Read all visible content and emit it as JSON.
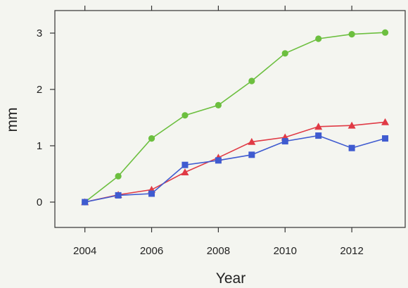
{
  "chart_data": {
    "type": "line",
    "title": "",
    "xlabel": "Year",
    "ylabel": "mm",
    "xlim": [
      2003.1,
      2013.6
    ],
    "ylim": [
      -0.45,
      3.4
    ],
    "x_ticks": [
      2004,
      2006,
      2008,
      2010,
      2012
    ],
    "x_tick_labels": [
      "2004",
      "2006",
      "2008",
      "2010",
      "2012"
    ],
    "y_ticks": [
      0,
      1,
      2,
      3
    ],
    "y_tick_labels": [
      "0",
      "1",
      "2",
      "3"
    ],
    "grid": false,
    "x": [
      2004,
      2005,
      2006,
      2007,
      2008,
      2009,
      2010,
      2011,
      2012,
      2013
    ],
    "series": [
      {
        "marker": "circle",
        "color": "#6cbf3f",
        "values": [
          0.0,
          0.46,
          1.13,
          1.54,
          1.72,
          2.15,
          2.64,
          2.9,
          2.98,
          3.01
        ]
      },
      {
        "marker": "triangle",
        "color": "#e03a45",
        "values": [
          0.0,
          0.13,
          0.22,
          0.53,
          0.79,
          1.07,
          1.15,
          1.34,
          1.36,
          1.42
        ]
      },
      {
        "marker": "square",
        "color": "#3f5bd0",
        "values": [
          0.0,
          0.12,
          0.15,
          0.66,
          0.74,
          0.84,
          1.08,
          1.18,
          0.96,
          1.13
        ]
      }
    ]
  }
}
